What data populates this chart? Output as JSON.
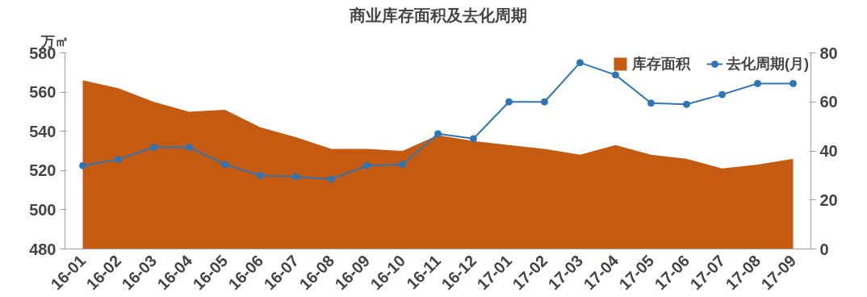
{
  "chart_data": {
    "type": "area",
    "title": "商业库存面积及去化周期",
    "ylabel": "万㎡",
    "categories": [
      "16-01",
      "16-02",
      "16-03",
      "16-04",
      "16-05",
      "16-06",
      "16-07",
      "16-08",
      "16-09",
      "16-10",
      "16-11",
      "16-12",
      "17-01",
      "17-02",
      "17-03",
      "17-04",
      "17-05",
      "17-06",
      "17-07",
      "17-08",
      "17-09"
    ],
    "series": [
      {
        "name": "库存面积",
        "color": "#c55a11",
        "values": [
          566,
          562,
          555,
          550,
          551,
          542,
          537,
          531,
          531,
          530,
          538,
          535,
          533,
          531,
          528,
          533,
          528,
          526,
          521,
          523,
          526
        ]
      },
      {
        "name": "去化周期(月)",
        "type": "line",
        "axis": "y2",
        "color": "#2e75b6",
        "marker": "circle",
        "values": [
          34,
          36.5,
          41.5,
          41.5,
          34.5,
          30,
          29.5,
          28.5,
          34,
          34.5,
          47,
          45,
          60,
          60,
          76,
          71,
          59.5,
          59,
          63,
          67.5,
          67.5
        ]
      }
    ],
    "ylim": [
      480,
      580
    ],
    "yticks": [
      480,
      500,
      520,
      540,
      560,
      580
    ],
    "y2lim": [
      0,
      80
    ],
    "y2ticks": [
      0,
      20,
      40,
      60,
      80
    ],
    "grid": false,
    "legend": "top right"
  }
}
